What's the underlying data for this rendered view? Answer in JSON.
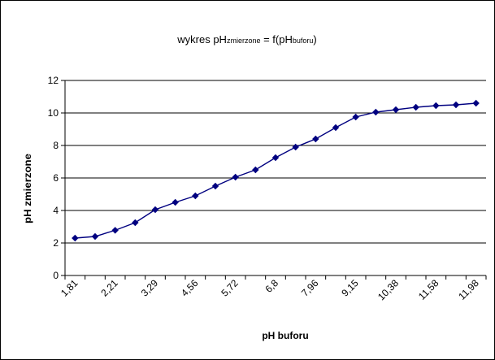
{
  "chart_data": {
    "type": "line",
    "title": {
      "prefix": "wykres pH",
      "sub1": "zmierzone",
      "middle": " = f(pH",
      "sub2": "buforu",
      "suffix": ")"
    },
    "xlabel": "pH buforu",
    "ylabel": "pH zmierzone",
    "ylim": [
      0,
      12
    ],
    "yticks": [
      "0",
      "2",
      "4",
      "6",
      "8",
      "10",
      "12"
    ],
    "xtick_labels": [
      "1,81",
      "2,21",
      "3,29",
      "4,56",
      "5,72",
      "6,8",
      "7,96",
      "9,15",
      "10,38",
      "11,58",
      "11,98"
    ],
    "grid": "horizontal",
    "legend": "none",
    "series": [
      {
        "values": [
          2.3,
          2.4,
          2.78,
          3.25,
          4.05,
          4.5,
          4.9,
          5.5,
          6.05,
          6.5,
          7.25,
          7.9,
          8.4,
          9.1,
          9.75,
          10.05,
          10.2,
          10.35,
          10.45,
          10.5,
          10.6
        ],
        "color": "#000080"
      }
    ]
  }
}
